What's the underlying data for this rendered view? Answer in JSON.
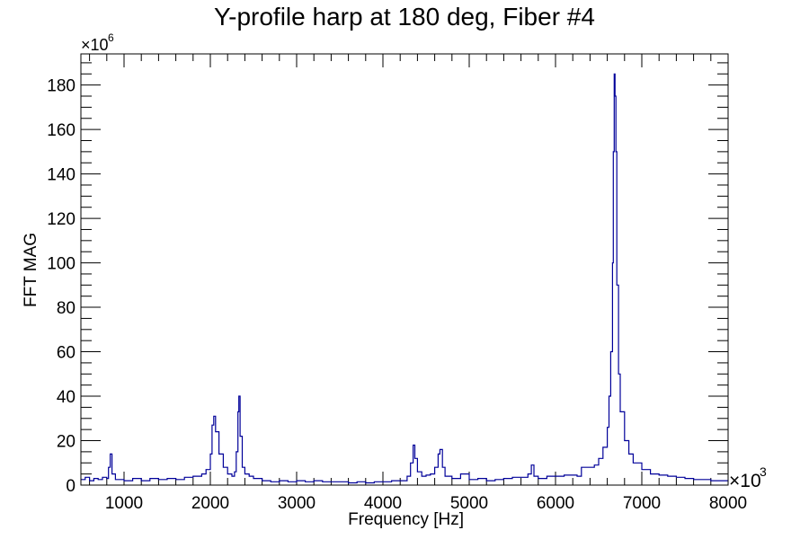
{
  "chart_data": {
    "type": "line",
    "style": "step-histogram",
    "title": "Y-profile harp at 180 deg, Fiber #4",
    "xlabel": "Frequency [Hz]",
    "ylabel": "FFT MAG",
    "x_multiplier_label": "×10",
    "x_multiplier_exp": "3",
    "y_multiplier_label": "×10",
    "y_multiplier_exp": "6",
    "xlim": [
      500,
      8000
    ],
    "ylim": [
      0,
      194
    ],
    "x_ticks": [
      1000,
      2000,
      3000,
      4000,
      5000,
      6000,
      7000,
      8000
    ],
    "y_ticks": [
      0,
      20,
      40,
      60,
      80,
      100,
      120,
      140,
      160,
      180
    ],
    "grid": false,
    "line_color": "#000099",
    "series": [
      {
        "x": [
          500,
          550,
          600,
          650,
          700,
          750,
          800,
          820,
          840,
          860,
          900,
          1000,
          1100,
          1200,
          1300,
          1400,
          1500,
          1600,
          1700,
          1800,
          1900,
          1950,
          2000,
          2020,
          2040,
          2060,
          2100,
          2150,
          2200,
          2250,
          2280,
          2300,
          2320,
          2330,
          2345,
          2370,
          2400,
          2450,
          2500,
          2600,
          2700,
          2800,
          2900,
          3000,
          3100,
          3200,
          3300,
          3400,
          3500,
          3600,
          3700,
          3800,
          3900,
          4000,
          4100,
          4200,
          4280,
          4320,
          4350,
          4370,
          4400,
          4450,
          4500,
          4550,
          4600,
          4640,
          4660,
          4690,
          4720,
          4800,
          4900,
          5000,
          5100,
          5200,
          5300,
          5400,
          5500,
          5600,
          5680,
          5720,
          5750,
          5800,
          5900,
          6000,
          6100,
          6200,
          6250,
          6300,
          6400,
          6450,
          6500,
          6550,
          6600,
          6620,
          6640,
          6660,
          6670,
          6680,
          6690,
          6700,
          6710,
          6730,
          6750,
          6800,
          6850,
          6900,
          7000,
          7100,
          7200,
          7300,
          7400,
          7500,
          7600,
          7700,
          7800,
          7900,
          8000
        ],
        "y": [
          2.5,
          3.5,
          2,
          3,
          2.5,
          3.5,
          3,
          8,
          14,
          5,
          2.5,
          2,
          3,
          2,
          3,
          2.5,
          3,
          2.5,
          3.5,
          4,
          5,
          7,
          14,
          27,
          31,
          24,
          14,
          8,
          5,
          4,
          6,
          15,
          33,
          40,
          22,
          8,
          5,
          4,
          3,
          2,
          1.5,
          2,
          1.5,
          2,
          1.5,
          2,
          1.5,
          1.5,
          1.5,
          1,
          1.5,
          1,
          1.5,
          1.5,
          2,
          2,
          4,
          10,
          18,
          12,
          6,
          4,
          4.5,
          5,
          8,
          14,
          16,
          8,
          4,
          3,
          5,
          2.5,
          3,
          2,
          2.5,
          3,
          3.5,
          3.5,
          5,
          9,
          4,
          3,
          4,
          4,
          4.5,
          4.5,
          4,
          8,
          8,
          9,
          12,
          17,
          26,
          40,
          60,
          100,
          150,
          185,
          175,
          150,
          90,
          50,
          33,
          20,
          14,
          10,
          7,
          5,
          4.5,
          4,
          3.5,
          3,
          2.5,
          2.5,
          2,
          2,
          2
        ]
      }
    ]
  }
}
